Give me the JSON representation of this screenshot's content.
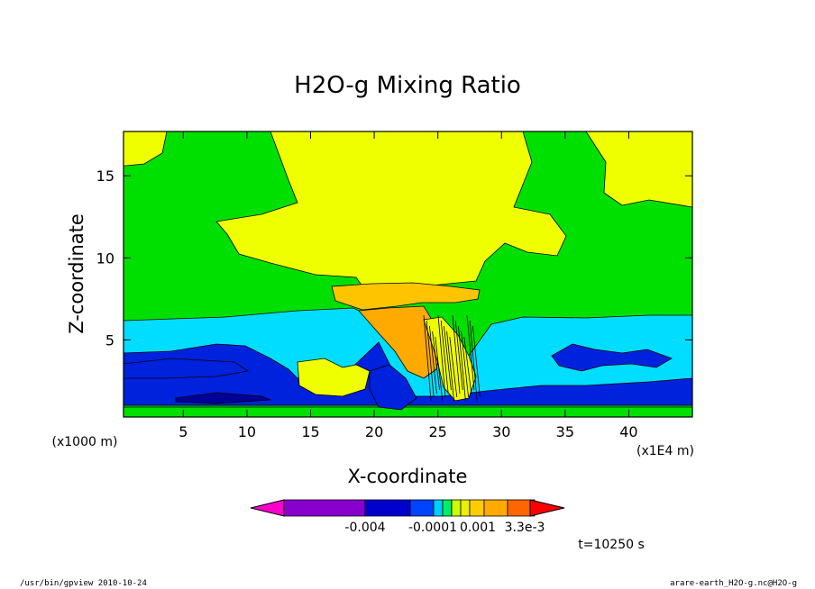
{
  "chart_data": {
    "type": "heatmap",
    "title": "H2O-g Mixing Ratio",
    "xlabel": "X-coordinate",
    "ylabel": "Z-coordinate",
    "x_unit": "(x1E4 m)",
    "y_unit": "(x1000 m)",
    "xlim": [
      0.3,
      45
    ],
    "ylim": [
      0.3,
      17.7
    ],
    "x_ticks": [
      5,
      10,
      15,
      20,
      25,
      30,
      35,
      40
    ],
    "y_ticks": [
      5,
      10,
      15
    ],
    "grid": false,
    "colorbar": {
      "orientation": "horizontal",
      "colors": [
        "#ff00cc",
        "#8800cc",
        "#0000cc",
        "#0044ff",
        "#00ccff",
        "#00ee66",
        "#ccff00",
        "#eeee00",
        "#ffcc00",
        "#ffaa00",
        "#ff6600",
        "#ff0000"
      ],
      "tick_labels": [
        "-0.004",
        "-0.0001",
        "0.001",
        "3.3e-3"
      ]
    },
    "time_label": "t=10250 s"
  },
  "footer": {
    "left": "/usr/bin/gpview  2010-10-24",
    "right": "arare-earth_H2O-g.nc@H2O-g"
  },
  "colors": {
    "green": "#00e000",
    "yellow": "#f0ff00",
    "cyan": "#00ddff",
    "blue": "#0022dd",
    "navy": "#000099",
    "orange": "#ffaa00",
    "lightorange": "#ffc400"
  }
}
